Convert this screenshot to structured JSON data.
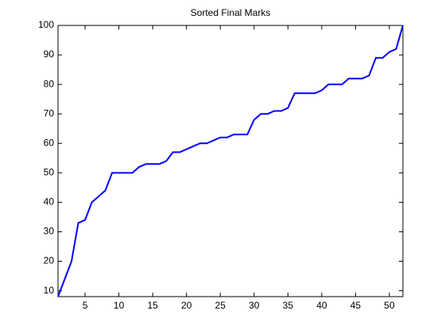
{
  "chart_data": {
    "type": "line",
    "title": "Sorted Final Marks",
    "x": [
      1,
      2,
      3,
      4,
      5,
      6,
      7,
      8,
      9,
      10,
      11,
      12,
      13,
      14,
      15,
      16,
      17,
      18,
      19,
      20,
      21,
      22,
      23,
      24,
      25,
      26,
      27,
      28,
      29,
      30,
      31,
      32,
      33,
      34,
      35,
      36,
      37,
      38,
      39,
      40,
      41,
      42,
      43,
      44,
      45,
      46,
      47,
      48,
      49,
      50,
      51,
      52
    ],
    "series": [
      {
        "color": "#0000ff",
        "values": [
          8,
          14,
          20,
          33,
          34,
          40,
          42,
          44,
          50,
          50,
          50,
          50,
          52,
          53,
          53,
          53,
          54,
          57,
          57,
          58,
          59,
          60,
          60,
          61,
          62,
          62,
          63,
          63,
          63,
          68,
          70,
          70,
          71,
          71,
          72,
          77,
          77,
          77,
          77,
          78,
          80,
          80,
          80,
          82,
          82,
          82,
          83,
          89,
          89,
          91,
          92,
          100
        ]
      }
    ],
    "xlim": [
      1,
      52
    ],
    "xticks": [
      5,
      10,
      15,
      20,
      25,
      30,
      35,
      40,
      45,
      50
    ],
    "ylim": [
      8,
      100
    ],
    "yticks": [
      10,
      20,
      30,
      40,
      50,
      60,
      70,
      80,
      90,
      100
    ],
    "grid": false
  }
}
